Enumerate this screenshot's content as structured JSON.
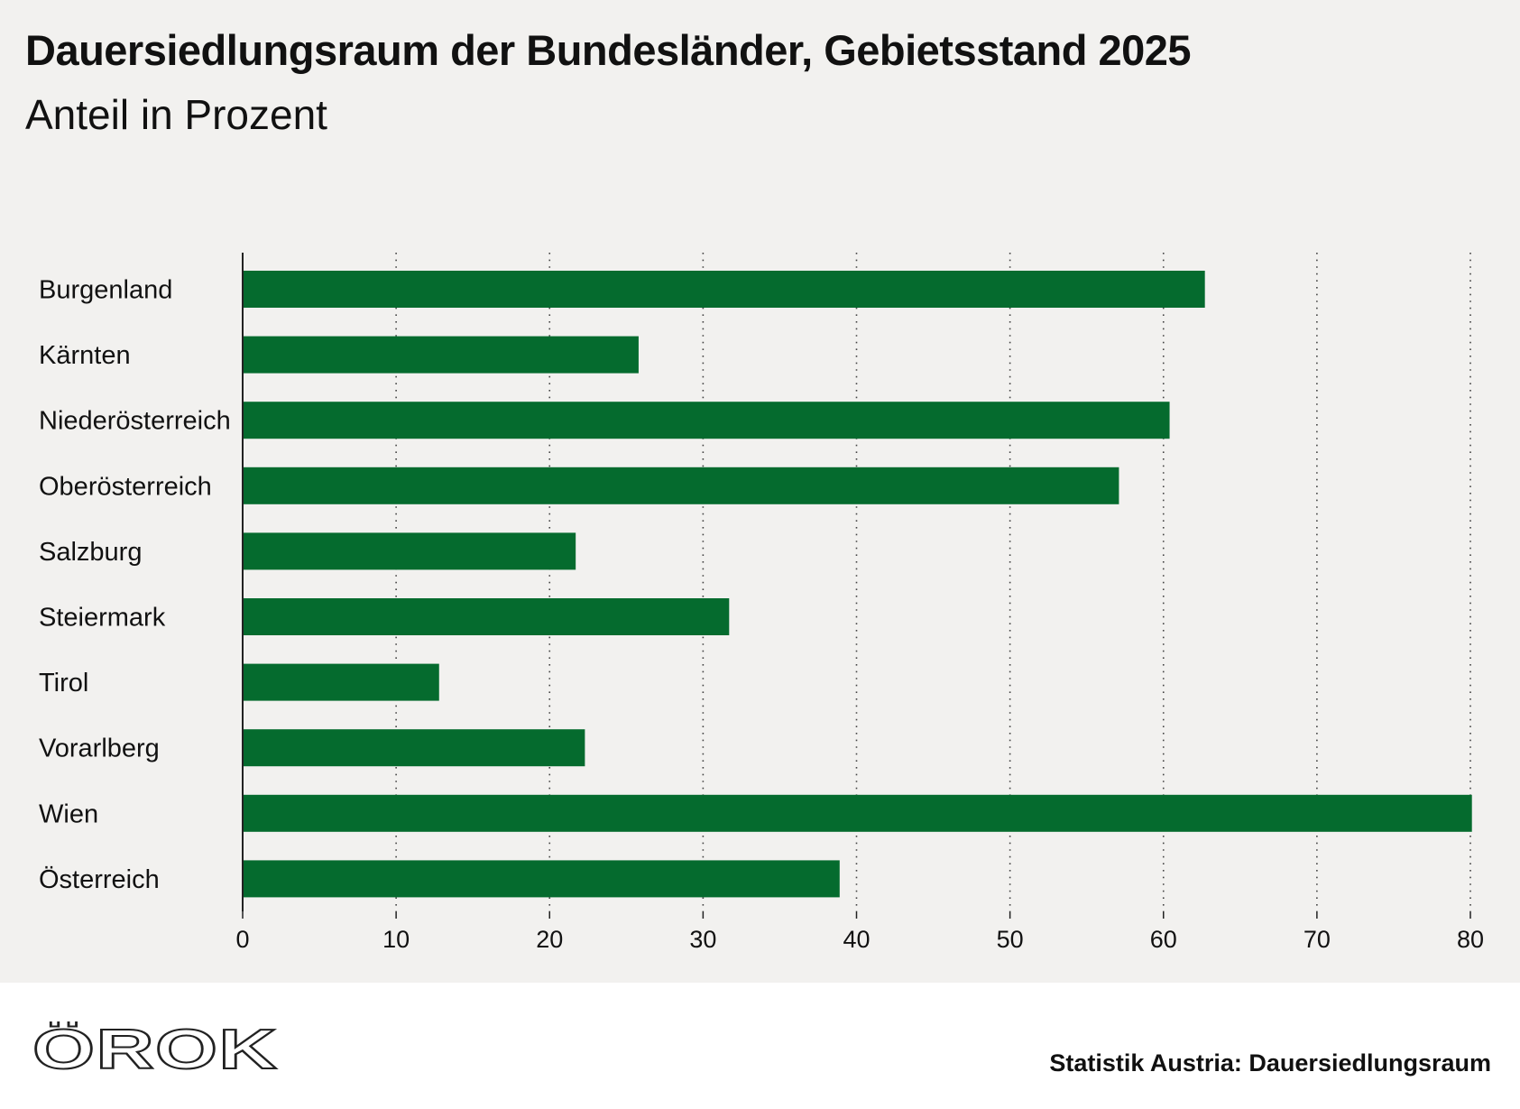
{
  "title": "Dauersiedlungsraum der Bundesländer, Gebietsstand 2025",
  "subtitle": "Anteil in Prozent",
  "source": "Statistik Austria: Dauersiedlungsraum",
  "logo_text": "ÖROK",
  "colors": {
    "bar": "#056b2e",
    "background": "#f2f1ef",
    "axis": "#222222"
  },
  "chart_data": {
    "type": "bar",
    "orientation": "horizontal",
    "title": "Dauersiedlungsraum der Bundesländer, Gebietsstand 2025",
    "subtitle": "Anteil in Prozent",
    "categories": [
      "Burgenland",
      "Kärnten",
      "Niederösterreich",
      "Oberösterreich",
      "Salzburg",
      "Steiermark",
      "Tirol",
      "Vorarlberg",
      "Wien",
      "Österreich"
    ],
    "values": [
      62.7,
      25.8,
      60.4,
      57.1,
      21.7,
      31.7,
      12.8,
      22.3,
      80.1,
      38.9
    ],
    "xlim": [
      0,
      80
    ],
    "xticks": [
      0,
      10,
      20,
      30,
      40,
      50,
      60,
      70,
      80
    ],
    "grid": "vertical dotted",
    "xlabel": "",
    "ylabel": ""
  }
}
